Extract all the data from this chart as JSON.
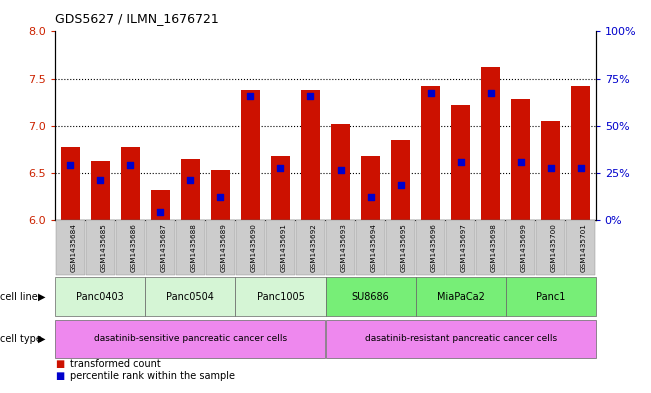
{
  "title": "GDS5627 / ILMN_1676721",
  "samples": [
    "GSM1435684",
    "GSM1435685",
    "GSM1435686",
    "GSM1435687",
    "GSM1435688",
    "GSM1435689",
    "GSM1435690",
    "GSM1435691",
    "GSM1435692",
    "GSM1435693",
    "GSM1435694",
    "GSM1435695",
    "GSM1435696",
    "GSM1435697",
    "GSM1435698",
    "GSM1435699",
    "GSM1435700",
    "GSM1435701"
  ],
  "bar_values": [
    6.78,
    6.63,
    6.78,
    6.32,
    6.65,
    6.53,
    7.38,
    6.68,
    7.38,
    7.02,
    6.68,
    6.85,
    7.42,
    7.22,
    7.62,
    7.28,
    7.05,
    7.42
  ],
  "percentile_values": [
    6.58,
    6.43,
    6.58,
    6.09,
    6.43,
    6.25,
    7.32,
    6.55,
    7.32,
    6.53,
    6.25,
    6.37,
    7.35,
    6.62,
    7.35,
    6.62,
    6.55,
    6.55
  ],
  "ylim_left": [
    6.0,
    8.0
  ],
  "ylim_right": [
    0,
    100
  ],
  "yticks_left": [
    6.0,
    6.5,
    7.0,
    7.5,
    8.0
  ],
  "yticks_right": [
    0,
    25,
    50,
    75,
    100
  ],
  "ytick_labels_right": [
    "0%",
    "25%",
    "50%",
    "75%",
    "100%"
  ],
  "cell_lines": [
    {
      "label": "Panc0403",
      "start": 0,
      "end": 3,
      "color": "#d5f5d5"
    },
    {
      "label": "Panc0504",
      "start": 3,
      "end": 6,
      "color": "#d5f5d5"
    },
    {
      "label": "Panc1005",
      "start": 6,
      "end": 9,
      "color": "#d5f5d5"
    },
    {
      "label": "SU8686",
      "start": 9,
      "end": 12,
      "color": "#77ee77"
    },
    {
      "label": "MiaPaCa2",
      "start": 12,
      "end": 15,
      "color": "#77ee77"
    },
    {
      "label": "Panc1",
      "start": 15,
      "end": 18,
      "color": "#77ee77"
    }
  ],
  "cell_types": [
    {
      "label": "dasatinib-sensitive pancreatic cancer cells",
      "start": 0,
      "end": 9,
      "color": "#ee88ee"
    },
    {
      "label": "dasatinib-resistant pancreatic cancer cells",
      "start": 9,
      "end": 18,
      "color": "#ee88ee"
    }
  ],
  "bar_color": "#cc1100",
  "dot_color": "#0000cc",
  "left_axis_color": "#cc2200",
  "right_axis_color": "#0000cc",
  "sample_bg_color": "#cccccc",
  "legend_items": [
    {
      "label": "transformed count",
      "color": "#cc1100"
    },
    {
      "label": "percentile rank within the sample",
      "color": "#0000cc"
    }
  ]
}
